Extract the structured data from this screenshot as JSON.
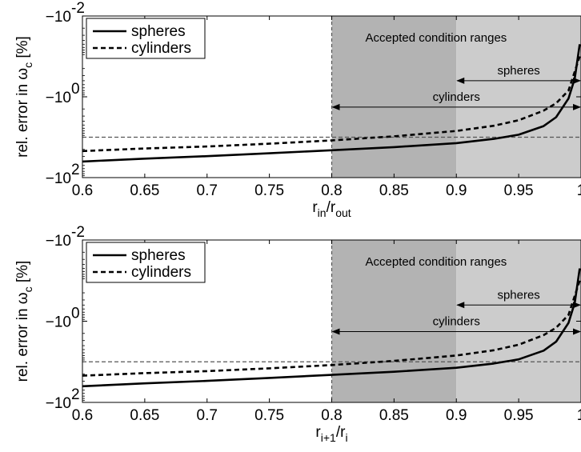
{
  "chart_data": [
    {
      "type": "line",
      "xlabel": "r_in / r_out",
      "xlabel_main": "r",
      "xlabel_sub1": "in",
      "xlabel_sep": "/r",
      "xlabel_sub2": "out",
      "ylabel": "rel. error in ω_c [%]",
      "ylabel_main": "rel. error in ω",
      "ylabel_sub": "c",
      "ylabel_tail": " [%]",
      "xlim": [
        0.6,
        1.0
      ],
      "x_ticks": [
        0.6,
        0.65,
        0.7,
        0.75,
        0.8,
        0.85,
        0.9,
        0.95,
        1
      ],
      "x_tick_labels": [
        "0.6",
        "0.65",
        "0.7",
        "0.75",
        "0.8",
        "0.85",
        "0.9",
        "0.95",
        "1"
      ],
      "y_scale": "log (negative values)",
      "y_ticks": [
        -0.01,
        -1,
        -100
      ],
      "y_tick_labels": [
        {
          "base": "−10",
          "exp": "-2"
        },
        {
          "base": "−10",
          "exp": "0"
        },
        {
          "base": "−10",
          "exp": "2"
        }
      ],
      "legend_position": "top-left",
      "series": [
        {
          "name": "spheres",
          "style": "solid",
          "x": [
            0.6,
            0.65,
            0.7,
            0.75,
            0.8,
            0.85,
            0.9,
            0.93,
            0.95,
            0.97,
            0.98,
            0.99,
            0.995,
            0.999
          ],
          "y": [
            -40,
            -34,
            -29.5,
            -25,
            -21,
            -17.6,
            -14,
            -11,
            -8.7,
            -5.3,
            -3.2,
            -1.1,
            -0.35,
            -0.05
          ]
        },
        {
          "name": "cylinders",
          "style": "dashed",
          "x": [
            0.6,
            0.65,
            0.7,
            0.75,
            0.8,
            0.85,
            0.9,
            0.93,
            0.95,
            0.97,
            0.98,
            0.99,
            0.999
          ],
          "y": [
            -22,
            -19,
            -17,
            -14.5,
            -12,
            -9.5,
            -7,
            -5.2,
            -3.8,
            -2.2,
            -1.45,
            -0.7,
            -0.1
          ]
        }
      ],
      "reference_lines": [
        {
          "orientation": "horizontal",
          "y": -10,
          "style": "dashed"
        },
        {
          "orientation": "vertical",
          "x": 0.8,
          "style": "dashed"
        }
      ],
      "shaded_regions": [
        {
          "x_range": [
            0.8,
            0.9
          ],
          "color": "#b3b3b3"
        },
        {
          "x_range": [
            0.9,
            1.0
          ],
          "color": "#cccccc"
        }
      ],
      "annotations": {
        "title": "Accepted condition ranges",
        "cylinders_label": "cylinders",
        "cylinders_range": [
          0.8,
          1.0
        ],
        "cylinders_arrow_y": -1.8,
        "spheres_label": "spheres",
        "spheres_range": [
          0.9,
          1.0
        ],
        "spheres_arrow_y": -0.4
      }
    },
    {
      "type": "line",
      "xlabel": "r_i+1 / r_i",
      "xlabel_main": "r",
      "xlabel_sub1": "i+1",
      "xlabel_sep": "/r",
      "xlabel_sub2": "i",
      "ylabel": "rel. error in ω_c [%]",
      "ylabel_main": "rel. error in ω",
      "ylabel_sub": "c",
      "ylabel_tail": " [%]",
      "xlim": [
        0.6,
        1.0
      ],
      "x_ticks": [
        0.6,
        0.65,
        0.7,
        0.75,
        0.8,
        0.85,
        0.9,
        0.95,
        1
      ],
      "x_tick_labels": [
        "0.6",
        "0.65",
        "0.7",
        "0.75",
        "0.8",
        "0.85",
        "0.9",
        "0.95",
        "1"
      ],
      "y_scale": "log (negative values)",
      "y_ticks": [
        -0.01,
        -1,
        -100
      ],
      "y_tick_labels": [
        {
          "base": "−10",
          "exp": "-2"
        },
        {
          "base": "−10",
          "exp": "0"
        },
        {
          "base": "−10",
          "exp": "2"
        }
      ],
      "legend_position": "top-left",
      "series": [
        {
          "name": "spheres",
          "style": "solid",
          "x": [
            0.6,
            0.65,
            0.7,
            0.75,
            0.8,
            0.85,
            0.9,
            0.93,
            0.95,
            0.97,
            0.98,
            0.99,
            0.995,
            0.999
          ],
          "y": [
            -40,
            -34,
            -29.5,
            -25,
            -21,
            -17.6,
            -14,
            -11,
            -8.7,
            -5.3,
            -3.2,
            -1.1,
            -0.35,
            -0.05
          ]
        },
        {
          "name": "cylinders",
          "style": "dashed",
          "x": [
            0.6,
            0.65,
            0.7,
            0.75,
            0.8,
            0.85,
            0.9,
            0.93,
            0.95,
            0.97,
            0.98,
            0.99,
            0.999
          ],
          "y": [
            -22,
            -19,
            -17,
            -14.5,
            -12,
            -9.5,
            -7,
            -5.2,
            -3.8,
            -2.2,
            -1.45,
            -0.7,
            -0.1
          ]
        }
      ],
      "reference_lines": [
        {
          "orientation": "horizontal",
          "y": -10,
          "style": "dashed"
        },
        {
          "orientation": "vertical",
          "x": 0.8,
          "style": "dashed"
        }
      ],
      "shaded_regions": [
        {
          "x_range": [
            0.8,
            0.9
          ],
          "color": "#b3b3b3"
        },
        {
          "x_range": [
            0.9,
            1.0
          ],
          "color": "#cccccc"
        }
      ],
      "annotations": {
        "title": "Accepted condition ranges",
        "cylinders_label": "cylinders",
        "cylinders_range": [
          0.8,
          1.0
        ],
        "cylinders_arrow_y": -1.8,
        "spheres_label": "spheres",
        "spheres_range": [
          0.9,
          1.0
        ],
        "spheres_arrow_y": -0.4
      }
    }
  ]
}
